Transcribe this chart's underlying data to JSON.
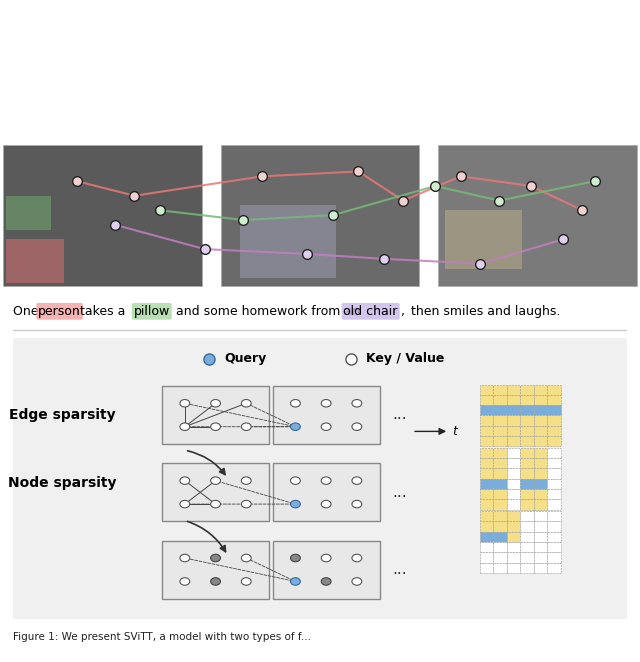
{
  "fig_width": 6.4,
  "fig_height": 6.62,
  "bg_color": "#ffffff",
  "panel_bg": "#f0f0f0",
  "caption": "Figure 1: We present SViTT, a model with two types of f...",
  "top_text": "One  person  takes a  pillow  and some homework from an  old chair,  then smiles and laughs.",
  "highlight_words": [
    {
      "word": "person",
      "color": "#f4a0a0"
    },
    {
      "word": "pillow",
      "color": "#a8d8a0"
    },
    {
      "word": "old chair",
      "color": "#c8b8e8"
    }
  ],
  "legend_query_color": "#7aaddb",
  "legend_kv_color": "#ffffff",
  "node_white": "#ffffff",
  "node_gray": "#888888",
  "node_query": "#7aaddb",
  "edge_color": "#333333",
  "arrow_color": "#333333",
  "box_face": "#e8e8e8",
  "box_edge": "#888888",
  "grid_yellow": "#f5e088",
  "grid_blue": "#7aaddb",
  "grid_white": "#ffffff",
  "dashed_border": "#999999"
}
